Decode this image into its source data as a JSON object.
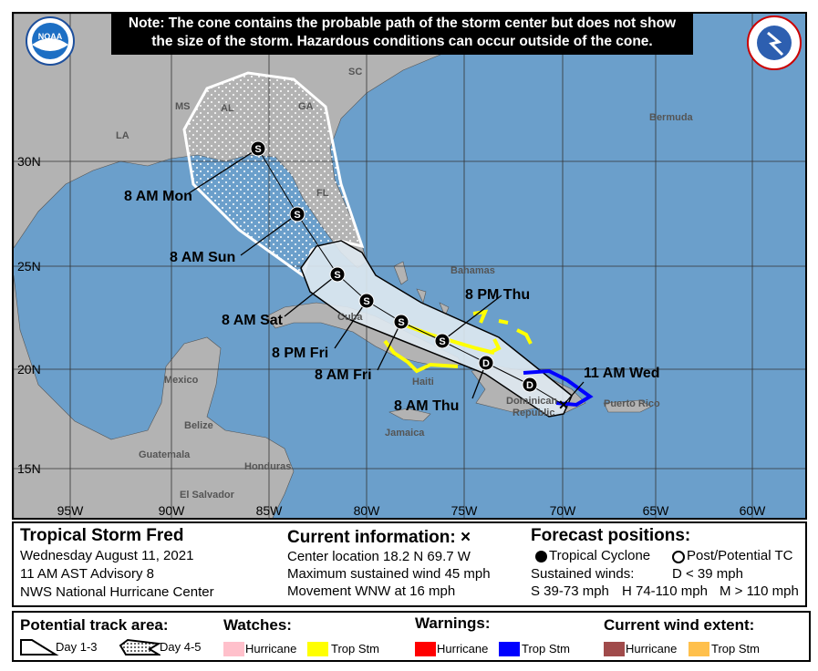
{
  "note": {
    "line1": "Note: The cone contains the probable path of the storm center but does not show",
    "line2": "the size of the storm. Hazardous conditions can occur outside of the cone."
  },
  "logos": {
    "noaa": "NOAA",
    "nws": "NATIONAL WEATHER SERVICE"
  },
  "colors": {
    "ocean": "#6b9fcb",
    "land": "#b3b3b3",
    "cone_day13": "#dfe9f1",
    "trop_storm_watch": "#ffff00",
    "trop_storm_warning": "#0000ff",
    "hurricane_watch": "#ffc0cb",
    "hurricane_warning": "#ff0000",
    "hurricane_wind": "#a04b4b",
    "trop_storm_wind": "#ffc04c"
  },
  "map": {
    "lon_labels": [
      "95W",
      "90W",
      "85W",
      "80W",
      "75W",
      "70W",
      "65W",
      "60W"
    ],
    "lat_labels": [
      "30N",
      "25N",
      "20N",
      "15N"
    ],
    "place_labels": [
      "MS",
      "AL",
      "GA",
      "SC",
      "LA",
      "FL",
      "Bermuda",
      "Bahamas",
      "Cuba",
      "Mexico",
      "Belize",
      "Jamaica",
      "Haiti",
      "Dominican",
      "Republic",
      "Puerto Rico",
      "Guatemala",
      "Honduras",
      "El Salvador"
    ],
    "forecast_points": [
      {
        "label": "11 AM Wed",
        "type": "X"
      },
      {
        "label": "",
        "type": "D"
      },
      {
        "label": "8 AM Thu",
        "type": "D"
      },
      {
        "label": "8 PM Thu",
        "type": "S"
      },
      {
        "label": "8 AM Fri",
        "type": "S"
      },
      {
        "label": "8 PM Fri",
        "type": "S"
      },
      {
        "label": "8 AM Sat",
        "type": "S"
      },
      {
        "label": "8 AM Sun",
        "type": "S"
      },
      {
        "label": "8 AM Mon",
        "type": "S"
      }
    ]
  },
  "info": {
    "storm_title": "Tropical Storm Fred",
    "date": "Wednesday August 11, 2021",
    "advisory": "11 AM AST Advisory 8",
    "agency": "NWS National Hurricane Center",
    "current_heading": "Current information: ×",
    "center": "Center location 18.2 N 69.7 W",
    "wind": "Maximum sustained wind 45 mph",
    "movement": "Movement WNW at 16 mph",
    "forecast_heading": "Forecast positions:",
    "tc": "Tropical Cyclone",
    "ptc": "Post/Potential TC",
    "sustained": "Sustained winds:",
    "d": "D < 39 mph",
    "s": "S 39-73 mph",
    "hh": "H 74-110 mph",
    "m": "M > 110 mph"
  },
  "legend": {
    "track_heading": "Potential track area:",
    "day13": "Day 1-3",
    "day45": "Day 4-5",
    "watches_heading": "Watches:",
    "warnings_heading": "Warnings:",
    "wind_heading": "Current wind extent:",
    "hurricane": "Hurricane",
    "trop_stm": "Trop Stm"
  }
}
